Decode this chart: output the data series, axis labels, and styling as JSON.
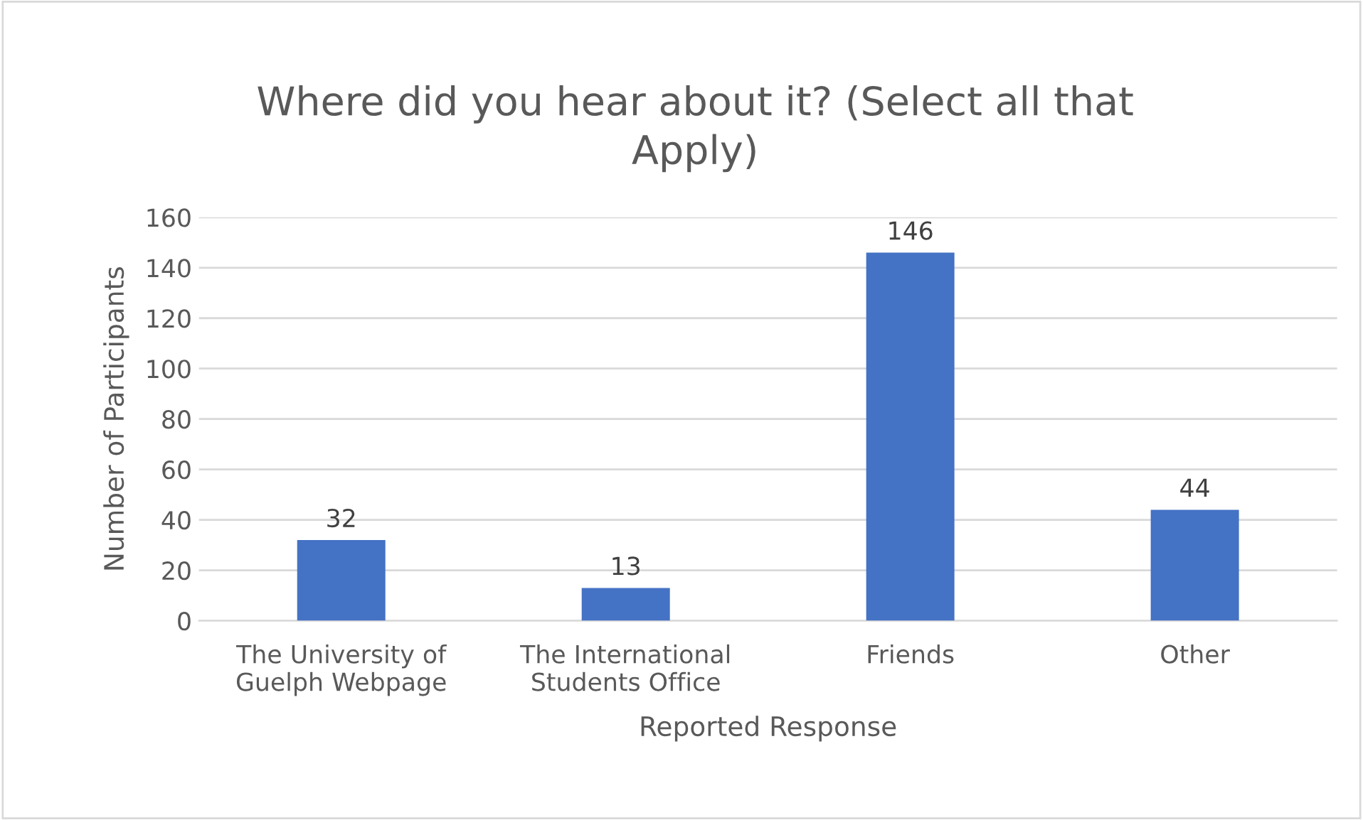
{
  "chart_data": {
    "type": "bar",
    "title": "Where did you hear about it? (Select all that\nApply)",
    "xlabel": "Reported Response",
    "ylabel": "Number of Participants",
    "categories": [
      "The University of\nGuelph Webpage",
      "The International\nStudents Office",
      "Friends",
      "Other"
    ],
    "values": [
      32,
      13,
      146,
      44
    ],
    "color": "#4472c4",
    "ylim": [
      0,
      160
    ],
    "yticks": [
      0,
      20,
      40,
      60,
      80,
      100,
      120,
      140,
      160
    ],
    "grid": "y",
    "data_labels": true
  }
}
